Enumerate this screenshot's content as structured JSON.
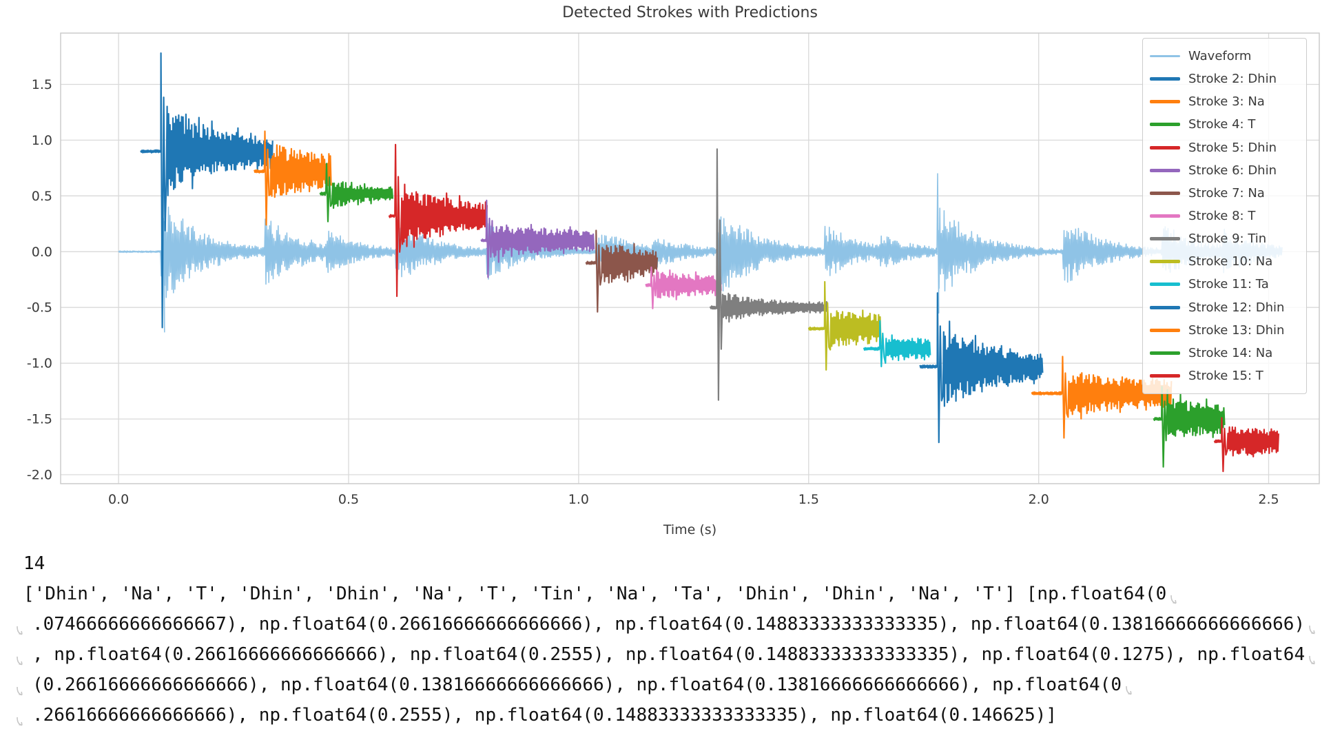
{
  "chart_data": {
    "type": "line",
    "title": "Detected Strokes with Predictions",
    "xlabel": "Time (s)",
    "xticks": [
      "0.0",
      "0.5",
      "1.0",
      "1.5",
      "2.0",
      "2.5"
    ],
    "xtick_values": [
      0.0,
      0.5,
      1.0,
      1.5,
      2.0,
      2.5
    ],
    "yticks": [
      "1.5",
      "1.0",
      "0.5",
      "0.0",
      "-0.5",
      "-1.0",
      "-1.5",
      "-2.0"
    ],
    "ytick_values": [
      1.5,
      1.0,
      0.5,
      0.0,
      -0.5,
      -1.0,
      -1.5,
      -2.0
    ],
    "xlim": [
      -0.126,
      2.61
    ],
    "ylim": [
      -2.08,
      1.96
    ],
    "grid": true,
    "grid_color": "#d9d9d9",
    "spine_color": "#c8c8c8",
    "text_color": "#3a3a3a",
    "legend_position": "upper right",
    "waveform": {
      "label": "Waveform",
      "color": "#8fc3e6",
      "t_end": 2.53,
      "base": 0.008,
      "tau": 0.09,
      "bursts": [
        [
          0.092,
          0.5
        ],
        [
          0.318,
          0.33
        ],
        [
          0.452,
          0.2
        ],
        [
          0.602,
          0.3
        ],
        [
          0.8,
          0.26
        ],
        [
          1.038,
          0.22
        ],
        [
          1.158,
          0.16
        ],
        [
          1.301,
          0.44
        ],
        [
          1.535,
          0.25
        ],
        [
          1.655,
          0.16
        ],
        [
          1.78,
          0.45
        ],
        [
          2.052,
          0.32
        ],
        [
          2.268,
          0.26
        ],
        [
          2.398,
          0.22
        ]
      ],
      "spikes": [
        [
          0.096,
          0.3,
          0.72
        ],
        [
          1.301,
          0.44,
          0.52
        ],
        [
          1.78,
          0.7,
          0.55
        ]
      ]
    },
    "strokes": [
      {
        "index": 2,
        "label": "Stroke 2: Dhin",
        "prediction": "Dhin",
        "color": "#1f77b4",
        "offset": 0.9,
        "t_lead": 0.048,
        "t_onset": 0.092,
        "t_end": 0.335,
        "spike_up": 0.88,
        "spike_down": 1.58,
        "osc_amp": 0.45,
        "tail_amp": 0.1,
        "tau": 0.1
      },
      {
        "index": 3,
        "label": "Stroke 3: Na",
        "prediction": "Na",
        "color": "#ff7f0e",
        "offset": 0.72,
        "t_lead": 0.295,
        "t_onset": 0.318,
        "t_end": 0.462,
        "spike_up": 0.36,
        "spike_down": 0.48,
        "osc_amp": 0.3,
        "tail_amp": 0.12,
        "tau": 0.08
      },
      {
        "index": 4,
        "label": "Stroke 4: T",
        "prediction": "T",
        "color": "#2ca02c",
        "offset": 0.52,
        "t_lead": 0.438,
        "t_onset": 0.452,
        "t_end": 0.597,
        "spike_up": 0.27,
        "spike_down": 0.25,
        "osc_amp": 0.16,
        "tail_amp": 0.055,
        "tau": 0.05
      },
      {
        "index": 5,
        "label": "Stroke 5: Dhin",
        "prediction": "Dhin",
        "color": "#d62728",
        "offset": 0.32,
        "t_lead": 0.588,
        "t_onset": 0.602,
        "t_end": 0.802,
        "spike_up": 0.64,
        "spike_down": 0.72,
        "osc_amp": 0.34,
        "tail_amp": 0.09,
        "tau": 0.09
      },
      {
        "index": 6,
        "label": "Stroke 6: Dhin",
        "prediction": "Dhin",
        "color": "#9467bd",
        "offset": 0.1,
        "t_lead": 0.788,
        "t_onset": 0.8,
        "t_end": 1.034,
        "spike_up": 0.36,
        "spike_down": 0.33,
        "osc_amp": 0.17,
        "tail_amp": 0.08,
        "tau": 0.1
      },
      {
        "index": 7,
        "label": "Stroke 7: Na",
        "prediction": "Na",
        "color": "#8c564b",
        "offset": -0.1,
        "t_lead": 1.016,
        "t_onset": 1.038,
        "t_end": 1.172,
        "spike_up": 0.29,
        "spike_down": 0.44,
        "osc_amp": 0.24,
        "tail_amp": 0.1,
        "tau": 0.07
      },
      {
        "index": 8,
        "label": "Stroke 8: T",
        "prediction": "T",
        "color": "#e377c2",
        "offset": -0.3,
        "t_lead": 1.146,
        "t_onset": 1.158,
        "t_end": 1.31,
        "spike_up": 0.16,
        "spike_down": 0.21,
        "osc_amp": 0.13,
        "tail_amp": 0.07,
        "tau": 0.09
      },
      {
        "index": 9,
        "label": "Stroke 9: Tin",
        "prediction": "Tin",
        "color": "#7f7f7f",
        "offset": -0.5,
        "t_lead": 1.286,
        "t_onset": 1.301,
        "t_end": 1.54,
        "spike_up": 1.42,
        "spike_down": 0.83,
        "osc_amp": 0.16,
        "tail_amp": 0.045,
        "tau": 0.07
      },
      {
        "index": 10,
        "label": "Stroke 10: Na",
        "prediction": "Na",
        "color": "#bcbd22",
        "offset": -0.69,
        "t_lead": 1.5,
        "t_onset": 1.535,
        "t_end": 1.657,
        "spike_up": 0.42,
        "spike_down": 0.37,
        "osc_amp": 0.17,
        "tail_amp": 0.12,
        "tau": 0.09
      },
      {
        "index": 11,
        "label": "Stroke 11: Ta",
        "prediction": "Ta",
        "color": "#17becf",
        "offset": -0.87,
        "t_lead": 1.62,
        "t_onset": 1.655,
        "t_end": 1.765,
        "spike_up": 0.25,
        "spike_down": 0.16,
        "osc_amp": 0.12,
        "tail_amp": 0.07,
        "tau": 0.1
      },
      {
        "index": 12,
        "label": "Stroke 12: Dhin",
        "prediction": "Dhin",
        "color": "#1f77b4",
        "offset": -1.03,
        "t_lead": 1.742,
        "t_onset": 1.78,
        "t_end": 2.01,
        "spike_up": 0.66,
        "spike_down": 0.68,
        "osc_amp": 0.42,
        "tail_amp": 0.09,
        "tau": 0.1
      },
      {
        "index": 13,
        "label": "Stroke 13: Dhin",
        "prediction": "Dhin",
        "color": "#ff7f0e",
        "offset": -1.27,
        "t_lead": 1.985,
        "t_onset": 2.052,
        "t_end": 2.29,
        "spike_up": 0.33,
        "spike_down": 0.4,
        "osc_amp": 0.22,
        "tail_amp": 0.11,
        "tau": 0.12
      },
      {
        "index": 14,
        "label": "Stroke 14: Na",
        "prediction": "Na",
        "color": "#2ca02c",
        "offset": -1.5,
        "t_lead": 2.25,
        "t_onset": 2.268,
        "t_end": 2.405,
        "spike_up": 0.29,
        "spike_down": 0.43,
        "osc_amp": 0.22,
        "tail_amp": 0.1,
        "tau": 0.09
      },
      {
        "index": 15,
        "label": "Stroke 15: T",
        "prediction": "T",
        "color": "#d62728",
        "offset": -1.7,
        "t_lead": 2.382,
        "t_onset": 2.398,
        "t_end": 2.523,
        "spike_up": 0.21,
        "spike_down": 0.27,
        "osc_amp": 0.15,
        "tail_amp": 0.09,
        "tau": 0.1
      }
    ]
  },
  "output": {
    "count": "14",
    "lines": [
      {
        "text": "['Dhin', 'Na', 'T', 'Dhin', 'Dhin', 'Na', 'T', 'Tin', 'Na', 'Ta', 'Dhin', 'Dhin', 'Na', 'T'] [np.float64(0",
        "wrap_start": false,
        "wrap_end": true
      },
      {
        "text": ".07466666666666667), np.float64(0.26616666666666666), np.float64(0.14883333333333335), np.float64(0.13816666666666666)",
        "wrap_start": true,
        "wrap_end": true
      },
      {
        "text": ", np.float64(0.26616666666666666), np.float64(0.2555), np.float64(0.14883333333333335), np.float64(0.1275), np.float64",
        "wrap_start": true,
        "wrap_end": true
      },
      {
        "text": "(0.26616666666666666), np.float64(0.13816666666666666), np.float64(0.13816666666666666), np.float64(0",
        "wrap_start": true,
        "wrap_end": true
      },
      {
        "text": ".26616666666666666), np.float64(0.2555), np.float64(0.14883333333333335), np.float64(0.146625)]",
        "wrap_start": true,
        "wrap_end": false
      }
    ],
    "wrap_arrow_color": "#c6c6c6"
  }
}
